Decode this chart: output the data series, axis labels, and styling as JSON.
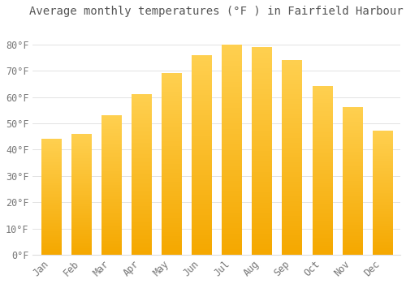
{
  "title": "Average monthly temperatures (°F ) in Fairfield Harbour",
  "months": [
    "Jan",
    "Feb",
    "Mar",
    "Apr",
    "May",
    "Jun",
    "Jul",
    "Aug",
    "Sep",
    "Oct",
    "Nov",
    "Dec"
  ],
  "values": [
    44,
    46,
    53,
    61,
    69,
    76,
    80,
    79,
    74,
    64,
    56,
    47
  ],
  "bar_color_top": "#FFC125",
  "bar_color_bottom": "#F5A800",
  "background_color": "#FFFFFF",
  "plot_bg_color": "#FFFFFF",
  "grid_color": "#DDDDDD",
  "text_color": "#777777",
  "title_color": "#555555",
  "ylim": [
    0,
    88
  ],
  "yticks": [
    0,
    10,
    20,
    30,
    40,
    50,
    60,
    70,
    80
  ],
  "title_fontsize": 10,
  "tick_fontsize": 8.5,
  "bar_width": 0.65
}
